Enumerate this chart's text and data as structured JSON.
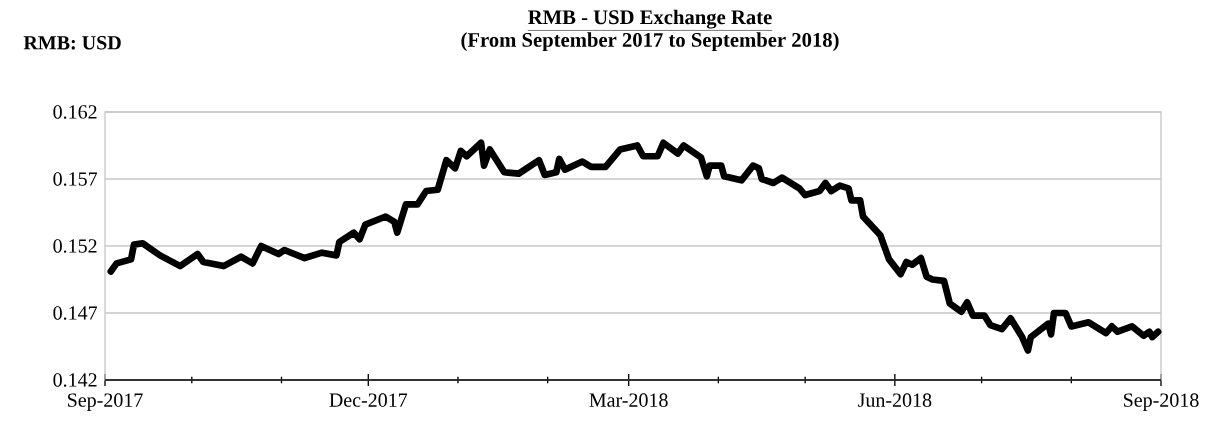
{
  "chart_data": {
    "type": "line",
    "title": "RMB - USD Exchange Rate",
    "subtitle": "(From September 2017 to September 2018)",
    "ylabel": "RMB: USD",
    "x": [
      "2017-09-03",
      "2017-09-05",
      "2017-09-10",
      "2017-09-11",
      "2017-09-14",
      "2017-09-20",
      "2017-09-27",
      "2017-10-03",
      "2017-10-05",
      "2017-10-12",
      "2017-10-18",
      "2017-10-22",
      "2017-10-25",
      "2017-10-31",
      "2017-11-02",
      "2017-11-09",
      "2017-11-15",
      "2017-11-20",
      "2017-11-21",
      "2017-11-26",
      "2017-11-28",
      "2017-11-30",
      "2017-12-07",
      "2017-12-10",
      "2017-12-11",
      "2017-12-14",
      "2017-12-18",
      "2017-12-21",
      "2017-12-25",
      "2017-12-28",
      "2017-12-31",
      "2018-01-02",
      "2018-01-04",
      "2018-01-09",
      "2018-01-10",
      "2018-01-12",
      "2018-01-17",
      "2018-01-22",
      "2018-01-29",
      "2018-01-31",
      "2018-02-04",
      "2018-02-05",
      "2018-02-07",
      "2018-02-13",
      "2018-02-16",
      "2018-02-21",
      "2018-02-26",
      "2018-03-04",
      "2018-03-06",
      "2018-03-11",
      "2018-03-13",
      "2018-03-18",
      "2018-03-20",
      "2018-03-26",
      "2018-03-28",
      "2018-03-29",
      "2018-04-02",
      "2018-04-03",
      "2018-04-09",
      "2018-04-13",
      "2018-04-15",
      "2018-04-16",
      "2018-04-20",
      "2018-04-23",
      "2018-04-29",
      "2018-05-01",
      "2018-05-06",
      "2018-05-08",
      "2018-05-10",
      "2018-05-13",
      "2018-05-16",
      "2018-05-17",
      "2018-05-20",
      "2018-05-21",
      "2018-05-27",
      "2018-05-30",
      "2018-06-03",
      "2018-06-05",
      "2018-06-07",
      "2018-06-10",
      "2018-06-12",
      "2018-06-14",
      "2018-06-18",
      "2018-06-20",
      "2018-06-24",
      "2018-06-26",
      "2018-06-28",
      "2018-07-02",
      "2018-07-04",
      "2018-07-08",
      "2018-07-11",
      "2018-07-15",
      "2018-07-17",
      "2018-07-18",
      "2018-07-24",
      "2018-07-25",
      "2018-07-26",
      "2018-07-30",
      "2018-08-01",
      "2018-08-07",
      "2018-08-13",
      "2018-08-15",
      "2018-08-17",
      "2018-08-22",
      "2018-08-26",
      "2018-08-28",
      "2018-08-29",
      "2018-08-31"
    ],
    "values": [
      0.1501,
      0.1507,
      0.151,
      0.1521,
      0.1522,
      0.1513,
      0.1505,
      0.1514,
      0.1508,
      0.1505,
      0.1512,
      0.1507,
      0.152,
      0.1514,
      0.1517,
      0.1511,
      0.1515,
      0.1513,
      0.1523,
      0.153,
      0.1525,
      0.1536,
      0.1542,
      0.1538,
      0.153,
      0.1551,
      0.1551,
      0.1561,
      0.1562,
      0.1584,
      0.1578,
      0.1591,
      0.1587,
      0.1597,
      0.158,
      0.1592,
      0.1575,
      0.1574,
      0.1584,
      0.1573,
      0.1575,
      0.1585,
      0.1577,
      0.1583,
      0.1579,
      0.1579,
      0.1592,
      0.1595,
      0.1587,
      0.1587,
      0.1597,
      0.1589,
      0.1595,
      0.1586,
      0.1572,
      0.158,
      0.158,
      0.1572,
      0.1569,
      0.158,
      0.1578,
      0.157,
      0.1567,
      0.1571,
      0.1563,
      0.1558,
      0.1561,
      0.1567,
      0.1561,
      0.1565,
      0.1563,
      0.1554,
      0.1554,
      0.1542,
      0.1528,
      0.151,
      0.1499,
      0.1508,
      0.1506,
      0.1511,
      0.1497,
      0.1495,
      0.1494,
      0.1477,
      0.1471,
      0.1478,
      0.1468,
      0.1468,
      0.1461,
      0.1458,
      0.1466,
      0.1452,
      0.1442,
      0.1452,
      0.1462,
      0.1454,
      0.147,
      0.147,
      0.146,
      0.1463,
      0.1455,
      0.146,
      0.1456,
      0.146,
      0.1453,
      0.1456,
      0.1452,
      0.1456
    ],
    "color": "#000000",
    "line_style": "solid",
    "grid": "y",
    "xlim": [
      "2017-09-01",
      "2018-09-01"
    ],
    "xticks": [
      {
        "value": "2017-09-01",
        "label": "Sep-2017"
      },
      {
        "value": "2017-10-01",
        "label": null
      },
      {
        "value": "2017-11-01",
        "label": null
      },
      {
        "value": "2017-12-01",
        "label": "Dec-2017"
      },
      {
        "value": "2018-01-01",
        "label": null
      },
      {
        "value": "2018-02-01",
        "label": null
      },
      {
        "value": "2018-03-01",
        "label": "Mar-2018"
      },
      {
        "value": "2018-04-01",
        "label": null
      },
      {
        "value": "2018-05-01",
        "label": null
      },
      {
        "value": "2018-06-01",
        "label": "Jun-2018"
      },
      {
        "value": "2018-07-01",
        "label": null
      },
      {
        "value": "2018-08-01",
        "label": null
      },
      {
        "value": "2018-09-01",
        "label": "Sep-2018"
      }
    ],
    "ylim": [
      0.142,
      0.162
    ],
    "yticks": [
      0.142,
      0.147,
      0.152,
      0.157,
      0.162
    ]
  }
}
